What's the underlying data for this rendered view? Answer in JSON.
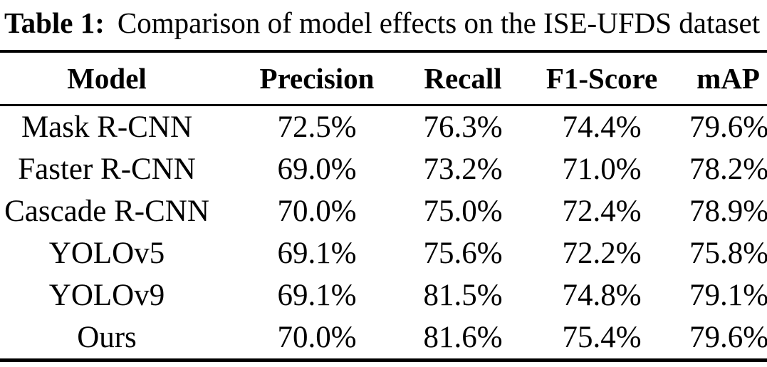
{
  "caption": {
    "label": "Table 1:",
    "text": "Comparison of model effects on the ISE-UFDS dataset"
  },
  "table": {
    "columns": [
      "Model",
      "Precision",
      "Recall",
      "F1-Score",
      "mAP"
    ],
    "rows": [
      {
        "model": "Mask R-CNN",
        "precision": "72.5%",
        "recall": "76.3%",
        "f1_score": "74.4%",
        "map": "79.6%"
      },
      {
        "model": "Faster R-CNN",
        "precision": "69.0%",
        "recall": "73.2%",
        "f1_score": "71.0%",
        "map": "78.2%"
      },
      {
        "model": "Cascade R-CNN",
        "precision": "70.0%",
        "recall": "75.0%",
        "f1_score": "72.4%",
        "map": "78.9%"
      },
      {
        "model": "YOLOv5",
        "precision": "69.1%",
        "recall": "75.6%",
        "f1_score": "72.2%",
        "map": "75.8%"
      },
      {
        "model": "YOLOv9",
        "precision": "69.1%",
        "recall": "81.5%",
        "f1_score": "74.8%",
        "map": "79.1%"
      },
      {
        "model": "Ours",
        "precision": "70.0%",
        "recall": "81.6%",
        "f1_score": "75.4%",
        "map": "79.6%"
      }
    ]
  },
  "colors": {
    "text": "#000000",
    "background": "#ffffff",
    "rule": "#000000"
  }
}
